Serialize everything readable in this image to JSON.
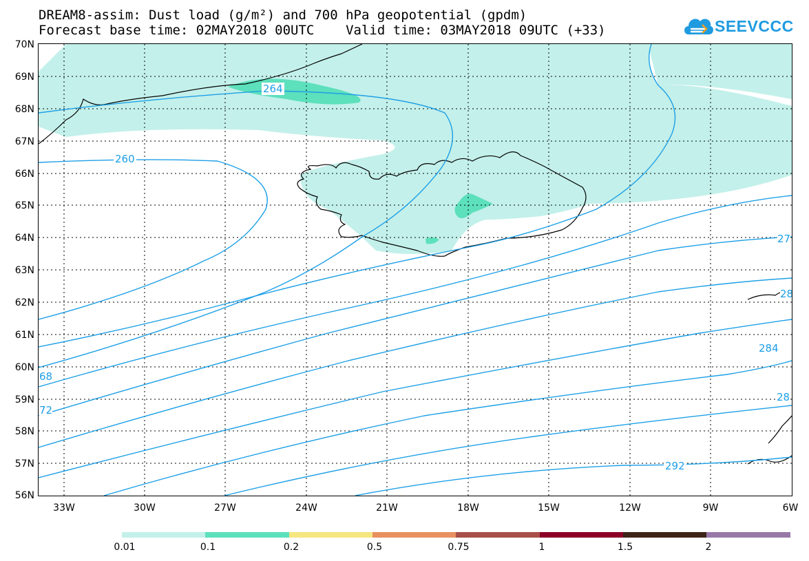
{
  "title": {
    "line1": "DREAM8-assim: Dust load (g/m²) and 700 hPa geopotential (gpdm)",
    "line2": "Forecast base time: 02MAY2018 00UTC    Valid time: 03MAY2018 09UTC (+33)"
  },
  "logo": {
    "text": "SEEVCCC",
    "icon": "cloud-logo-icon",
    "color": "#1f9be0"
  },
  "map": {
    "region": "North Atlantic / Iceland",
    "extent": {
      "lon": [
        -34.2,
        -6
      ],
      "lat": [
        56,
        70
      ]
    },
    "lat_labels": [
      "70N",
      "69N",
      "68N",
      "67N",
      "66N",
      "65N",
      "64N",
      "63N",
      "62N",
      "61N",
      "60N",
      "59N",
      "58N",
      "57N",
      "56N"
    ],
    "lon_labels": [
      "33W",
      "30W",
      "27W",
      "24W",
      "21W",
      "18W",
      "15W",
      "12W",
      "9W",
      "6W"
    ],
    "dust_colors": {
      "light": "#c3f0ea",
      "medium": "#5de0bc"
    },
    "contour_color": "#1c9fe6",
    "contour_labels": [
      "264",
      "260",
      "27",
      "28",
      "284",
      "28",
      "292",
      "68",
      "72"
    ]
  },
  "legend": {
    "levels": [
      "0.01",
      "0.1",
      "0.2",
      "0.5",
      "0.75",
      "1",
      "1.5",
      "2"
    ],
    "colors": [
      "#c3f0ea",
      "#5de0bc",
      "#f5e680",
      "#e89060",
      "#a85048",
      "#8c0028",
      "#3c2418",
      "#9878a8"
    ]
  }
}
